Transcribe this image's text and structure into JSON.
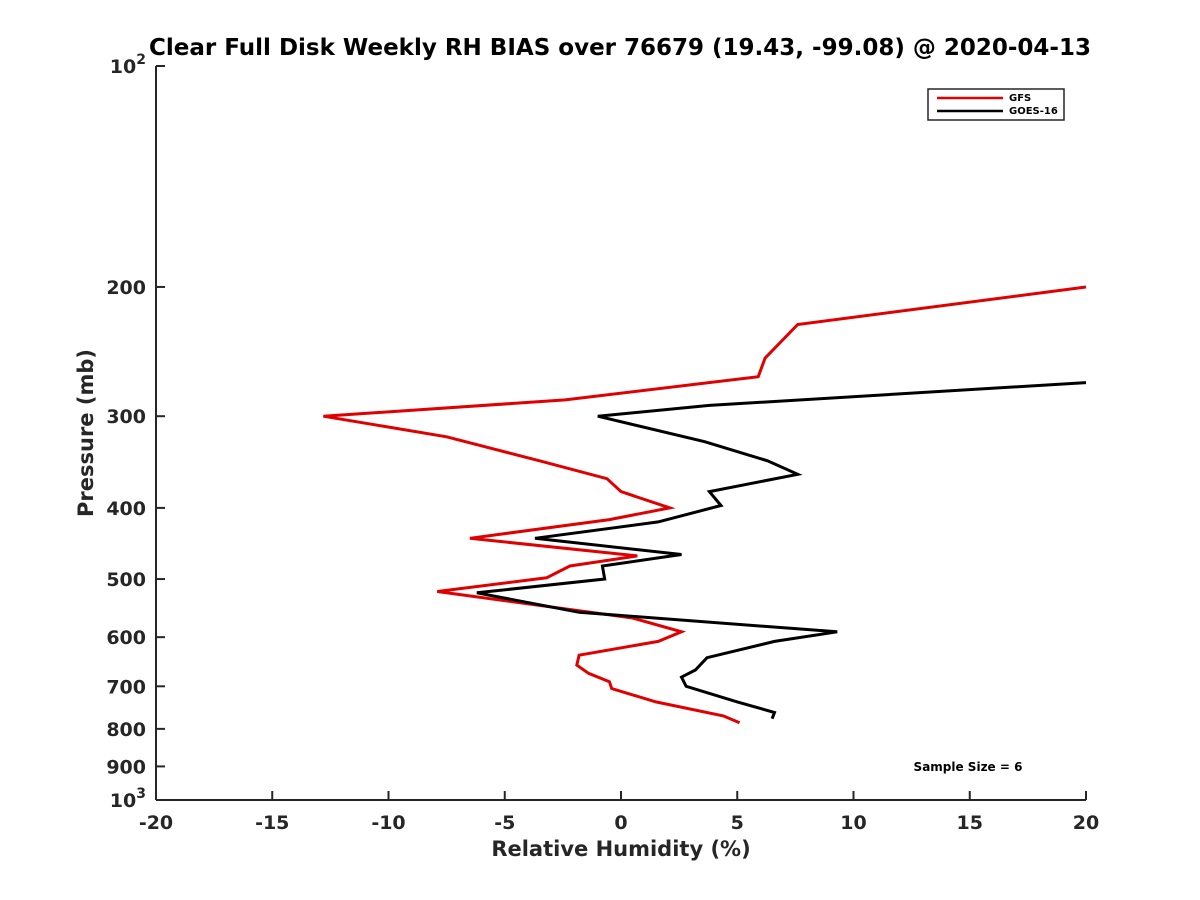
{
  "chart_data": {
    "type": "line",
    "title": "Clear Full Disk Weekly RH BIAS over 76679 (19.43, -99.08) @ 2020-04-13",
    "xlabel": "Relative Humidity (%)",
    "ylabel": "Pressure (mb)",
    "xlim": [
      -20,
      20
    ],
    "ylim": [
      100,
      1000
    ],
    "y_scale": "log",
    "y_reversed": true,
    "grid": false,
    "legend_position": "top-right",
    "x_ticks": [
      -20,
      -15,
      -10,
      -5,
      0,
      5,
      10,
      15,
      20
    ],
    "x_tick_labels": [
      "-20",
      "-15",
      "-10",
      "-5",
      "0",
      "5",
      "10",
      "15",
      "20"
    ],
    "y_ticks": [
      {
        "value": 100,
        "label": "10",
        "sup": "2"
      },
      {
        "value": 200,
        "label": "200",
        "sup": ""
      },
      {
        "value": 300,
        "label": "300",
        "sup": ""
      },
      {
        "value": 400,
        "label": "400",
        "sup": ""
      },
      {
        "value": 500,
        "label": "500",
        "sup": ""
      },
      {
        "value": 600,
        "label": "600",
        "sup": ""
      },
      {
        "value": 700,
        "label": "700",
        "sup": ""
      },
      {
        "value": 800,
        "label": "800",
        "sup": ""
      },
      {
        "value": 900,
        "label": "900",
        "sup": ""
      },
      {
        "value": 1000,
        "label": "10",
        "sup": "3"
      }
    ],
    "annotation": "Sample Size = 6",
    "series": [
      {
        "name": "GFS",
        "color": "#e00000",
        "points": [
          [
            20,
            200
          ],
          [
            7.6,
            225
          ],
          [
            6.2,
            250
          ],
          [
            5.9,
            265
          ],
          [
            -2.4,
            285
          ],
          [
            -12.8,
            300
          ],
          [
            -7.5,
            320
          ],
          [
            -3.5,
            345
          ],
          [
            -0.6,
            365
          ],
          [
            0,
            380
          ],
          [
            2.1,
            400
          ],
          [
            -0.5,
            415
          ],
          [
            -6.5,
            440
          ],
          [
            0.7,
            465
          ],
          [
            -2.2,
            480
          ],
          [
            -3.2,
            498
          ],
          [
            -7.9,
            520
          ],
          [
            0.5,
            565
          ],
          [
            2.6,
            590
          ],
          [
            1.6,
            608
          ],
          [
            -1.8,
            635
          ],
          [
            -1.9,
            655
          ],
          [
            -1.4,
            672
          ],
          [
            -0.5,
            690
          ],
          [
            -0.4,
            705
          ],
          [
            1.5,
            735
          ],
          [
            4.4,
            768
          ],
          [
            5.1,
            785
          ]
        ]
      },
      {
        "name": "GOES-16",
        "color": "#000000",
        "points": [
          [
            20,
            270
          ],
          [
            3.8,
            290
          ],
          [
            -1.0,
            300
          ],
          [
            3.6,
            325
          ],
          [
            6.3,
            345
          ],
          [
            7.6,
            360
          ],
          [
            3.8,
            380
          ],
          [
            4.3,
            397
          ],
          [
            1.6,
            418
          ],
          [
            -3.7,
            440
          ],
          [
            2.6,
            463
          ],
          [
            -0.8,
            480
          ],
          [
            -0.7,
            500
          ],
          [
            -6.2,
            522
          ],
          [
            -1.8,
            555
          ],
          [
            9.3,
            590
          ],
          [
            6.6,
            608
          ],
          [
            3.7,
            640
          ],
          [
            3.2,
            665
          ],
          [
            2.6,
            680
          ],
          [
            2.8,
            700
          ],
          [
            5.0,
            735
          ],
          [
            6.6,
            760
          ],
          [
            6.5,
            775
          ]
        ]
      }
    ]
  }
}
